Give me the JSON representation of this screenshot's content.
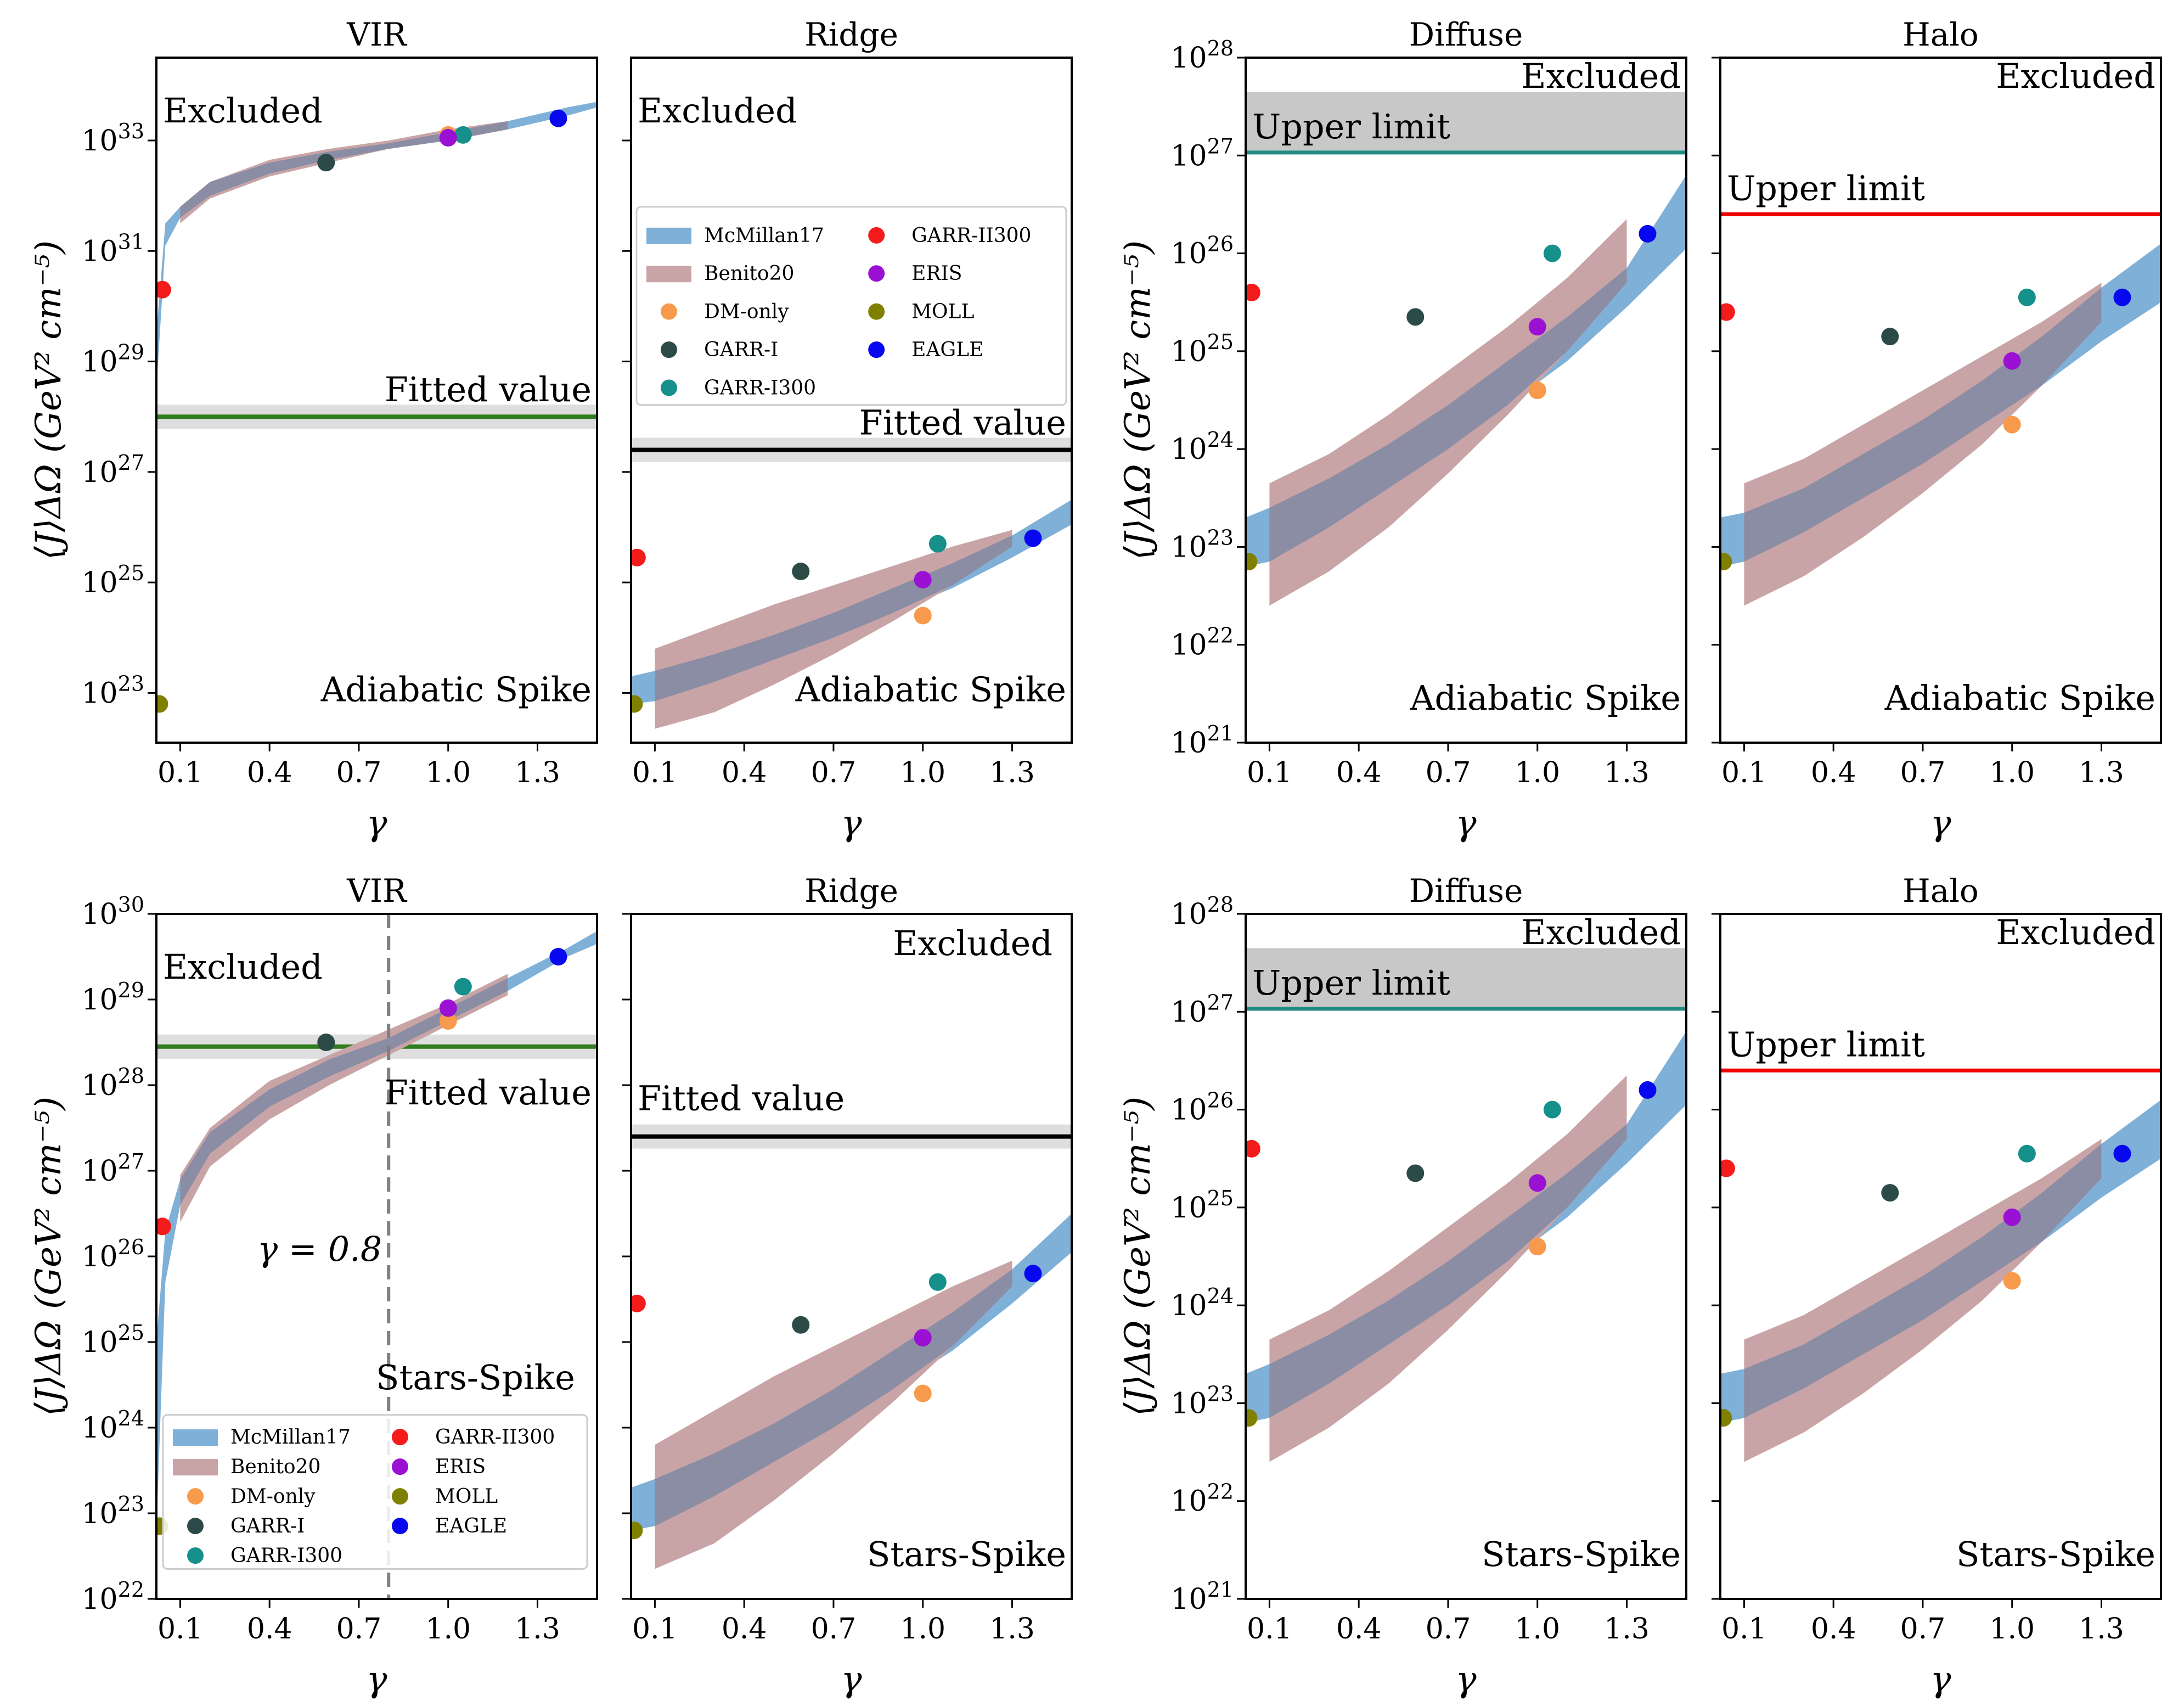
{
  "colors": {
    "mcmillan": "#7fb1d8",
    "benito": "#c9a4a6",
    "overlap": "#8b8da4",
    "fitted_vir": "#2f7d1f",
    "fitted_black": "#000000",
    "upper_teal": "#1f8b82",
    "upper_red": "#f00000",
    "excluded_gray": "#c8c8c8",
    "marker_colors": {
      "DM-only": "#f79a4b",
      "GARR-I": "#2c4a48",
      "GARR-I300": "#16908a",
      "GARR-II300": "#f41b1b",
      "ERIS": "#9b11d4",
      "MOLL": "#808000",
      "EAGLE": "#0808f0"
    }
  },
  "legend_entries": {
    "bands": [
      "McMillan17",
      "Benito20"
    ],
    "markers": [
      "DM-only",
      "GARR-I",
      "GARR-I300",
      "GARR-II300",
      "ERIS",
      "MOLL",
      "EAGLE"
    ]
  },
  "labels": {
    "excluded": "Excluded",
    "fitted": "Fitted value",
    "upper": "Upper limit",
    "adiabatic": "Adiabatic Spike",
    "stars": "Stars-Spike",
    "gamma_line": "γ = 0.8"
  },
  "chart_data": [
    {
      "id": "adiabatic-vir",
      "type": "scatter",
      "title": "VIR",
      "xlabel": "γ",
      "ylabel": "⟨J⟩ΔΩ (GeV² cm⁻⁵)",
      "xlim": [
        0.02,
        1.5
      ],
      "ylim_log10": [
        22.1,
        34.5
      ],
      "y_ticks_log10": [
        23,
        25,
        27,
        29,
        31,
        33
      ],
      "x_ticks": [
        0.1,
        0.4,
        0.7,
        1.0,
        1.3
      ],
      "model_label": "Adiabatic Spike",
      "line_type": "fitted",
      "line_log10": 28.0,
      "points": {
        "DM-only": [
          1.0,
          33.1
        ],
        "GARR-I": [
          0.59,
          32.6
        ],
        "GARR-I300": [
          1.05,
          33.1
        ],
        "GARR-II300": [
          0.04,
          30.3
        ],
        "ERIS": [
          1.0,
          33.05
        ],
        "MOLL": [
          0.03,
          22.8
        ],
        "EAGLE": [
          1.37,
          33.4
        ]
      },
      "bands": {
        "mcmillan": {
          "x": [
            0.02,
            0.05,
            0.1,
            0.2,
            0.4,
            0.6,
            0.8,
            1.0,
            1.2,
            1.4,
            1.5
          ],
          "lo": [
            28.5,
            31.1,
            31.6,
            32.0,
            32.4,
            32.65,
            32.85,
            33.0,
            33.2,
            33.45,
            33.6
          ],
          "hi": [
            29.5,
            31.5,
            31.8,
            32.25,
            32.6,
            32.8,
            32.95,
            33.15,
            33.35,
            33.6,
            33.7
          ]
        },
        "benito": {
          "x": [
            0.1,
            0.2,
            0.4,
            0.6,
            0.8,
            1.0,
            1.2
          ],
          "lo": [
            31.5,
            31.95,
            32.35,
            32.6,
            32.85,
            33.0,
            33.2
          ],
          "hi": [
            31.8,
            32.25,
            32.65,
            32.85,
            33.0,
            33.2,
            33.35
          ]
        }
      }
    },
    {
      "id": "adiabatic-ridge",
      "type": "scatter",
      "title": "Ridge",
      "xlabel": "γ",
      "ylabel": "",
      "xlim": [
        0.02,
        1.5
      ],
      "ylim_log10": [
        22.1,
        34.5
      ],
      "y_ticks_log10": [
        23,
        25,
        27,
        29,
        31,
        33
      ],
      "x_ticks": [
        0.1,
        0.4,
        0.7,
        1.0,
        1.3
      ],
      "model_label": "Adiabatic Spike",
      "line_type": "fitted",
      "line_log10": 27.4,
      "points": {
        "DM-only": [
          1.0,
          24.4
        ],
        "GARR-I": [
          0.59,
          25.2
        ],
        "GARR-I300": [
          1.05,
          25.7
        ],
        "GARR-II300": [
          0.04,
          25.45
        ],
        "ERIS": [
          1.0,
          25.05
        ],
        "MOLL": [
          0.03,
          22.8
        ],
        "EAGLE": [
          1.37,
          25.8
        ]
      },
      "bands": {
        "mcmillan": {
          "x": [
            0.02,
            0.1,
            0.3,
            0.5,
            0.7,
            0.9,
            1.1,
            1.3,
            1.5
          ],
          "lo": [
            22.8,
            22.85,
            23.2,
            23.6,
            24.0,
            24.45,
            24.9,
            25.45,
            26.05
          ],
          "hi": [
            23.3,
            23.4,
            23.7,
            24.05,
            24.45,
            24.9,
            25.35,
            25.85,
            26.5
          ]
        },
        "benito": {
          "x": [
            0.1,
            0.3,
            0.5,
            0.7,
            0.9,
            1.1,
            1.3
          ],
          "lo": [
            22.35,
            22.65,
            23.15,
            23.7,
            24.3,
            24.95,
            25.65
          ],
          "hi": [
            23.8,
            24.2,
            24.6,
            24.95,
            25.3,
            25.65,
            25.95
          ]
        }
      }
    },
    {
      "id": "adiabatic-diffuse",
      "type": "scatter",
      "title": "Diffuse",
      "xlabel": "γ",
      "ylabel": "⟨J⟩ΔΩ (GeV² cm⁻⁵)",
      "xlim": [
        0.02,
        1.5
      ],
      "ylim_log10": [
        21,
        28
      ],
      "y_ticks_log10": [
        21,
        22,
        23,
        24,
        25,
        26,
        27,
        28
      ],
      "x_ticks": [
        0.1,
        0.4,
        0.7,
        1.0,
        1.3
      ],
      "model_label": "Adiabatic Spike",
      "line_type": "upper_teal",
      "line_log10": 27.03,
      "excluded_top_log10": 27.65,
      "points": {
        "DM-only": [
          1.0,
          24.6
        ],
        "GARR-I": [
          0.59,
          25.35
        ],
        "GARR-I300": [
          1.05,
          26.0
        ],
        "GARR-II300": [
          0.04,
          25.6
        ],
        "ERIS": [
          1.0,
          25.25
        ],
        "MOLL": [
          0.03,
          22.85
        ],
        "EAGLE": [
          1.37,
          26.2
        ]
      },
      "bands": {
        "mcmillan": {
          "x": [
            0.02,
            0.1,
            0.3,
            0.5,
            0.7,
            0.9,
            1.1,
            1.3,
            1.5
          ],
          "lo": [
            22.8,
            22.85,
            23.2,
            23.6,
            24.0,
            24.45,
            24.9,
            25.45,
            26.05
          ],
          "hi": [
            23.3,
            23.4,
            23.7,
            24.05,
            24.45,
            24.9,
            25.35,
            25.85,
            26.8
          ]
        },
        "benito": {
          "x": [
            0.1,
            0.3,
            0.5,
            0.7,
            0.9,
            1.1,
            1.3
          ],
          "lo": [
            22.4,
            22.75,
            23.2,
            23.75,
            24.35,
            25.0,
            25.7
          ],
          "hi": [
            23.65,
            23.95,
            24.35,
            24.8,
            25.25,
            25.75,
            26.35
          ]
        }
      }
    },
    {
      "id": "adiabatic-halo",
      "type": "scatter",
      "title": "Halo",
      "xlabel": "γ",
      "ylabel": "",
      "xlim": [
        0.02,
        1.5
      ],
      "ylim_log10": [
        21,
        28
      ],
      "y_ticks_log10": [
        21,
        22,
        23,
        24,
        25,
        26,
        27,
        28
      ],
      "x_ticks": [
        0.1,
        0.4,
        0.7,
        1.0,
        1.3
      ],
      "model_label": "Adiabatic Spike",
      "line_type": "upper_red",
      "line_log10": 26.4,
      "points": {
        "DM-only": [
          1.0,
          24.25
        ],
        "GARR-I": [
          0.59,
          25.15
        ],
        "GARR-I300": [
          1.05,
          25.55
        ],
        "GARR-II300": [
          0.04,
          25.4
        ],
        "ERIS": [
          1.0,
          24.9
        ],
        "MOLL": [
          0.03,
          22.85
        ],
        "EAGLE": [
          1.37,
          25.55
        ]
      },
      "bands": {
        "mcmillan": {
          "x": [
            0.02,
            0.1,
            0.3,
            0.5,
            0.7,
            0.9,
            1.1,
            1.3,
            1.5
          ],
          "lo": [
            22.8,
            22.85,
            23.15,
            23.5,
            23.85,
            24.25,
            24.65,
            25.1,
            25.5
          ],
          "hi": [
            23.3,
            23.35,
            23.6,
            23.95,
            24.3,
            24.7,
            25.15,
            25.65,
            26.1
          ]
        },
        "benito": {
          "x": [
            0.1,
            0.3,
            0.5,
            0.7,
            0.9,
            1.1,
            1.3
          ],
          "lo": [
            22.4,
            22.7,
            23.1,
            23.55,
            24.05,
            24.65,
            25.3
          ],
          "hi": [
            23.65,
            23.9,
            24.25,
            24.6,
            24.95,
            25.3,
            25.7
          ]
        }
      }
    },
    {
      "id": "stars-vir",
      "type": "scatter",
      "title": "VIR",
      "xlabel": "γ",
      "ylabel": "⟨J⟩ΔΩ (GeV² cm⁻⁵)",
      "xlim": [
        0.02,
        1.5
      ],
      "ylim_log10": [
        22,
        30
      ],
      "y_ticks_log10": [
        22,
        23,
        24,
        25,
        26,
        27,
        28,
        29,
        30
      ],
      "x_ticks": [
        0.1,
        0.4,
        0.7,
        1.0,
        1.3
      ],
      "model_label": "Stars-Spike",
      "line_type": "fitted",
      "line_log10": 28.45,
      "vline_x": 0.8,
      "points": {
        "DM-only": [
          1.0,
          28.75
        ],
        "GARR-I": [
          0.59,
          28.5
        ],
        "GARR-I300": [
          1.05,
          29.15
        ],
        "GARR-II300": [
          0.04,
          26.35
        ],
        "ERIS": [
          1.0,
          28.9
        ],
        "MOLL": [
          0.03,
          22.85
        ],
        "EAGLE": [
          1.37,
          29.5
        ]
      },
      "bands": {
        "mcmillan": {
          "x": [
            0.02,
            0.05,
            0.1,
            0.2,
            0.4,
            0.6,
            0.8,
            1.0,
            1.2,
            1.4,
            1.5
          ],
          "lo": [
            22.8,
            25.7,
            26.6,
            27.2,
            27.75,
            28.1,
            28.4,
            28.75,
            29.1,
            29.5,
            29.65
          ],
          "hi": [
            25.0,
            26.3,
            26.9,
            27.45,
            27.95,
            28.3,
            28.55,
            28.9,
            29.25,
            29.6,
            29.8
          ]
        },
        "benito": {
          "x": [
            0.1,
            0.2,
            0.4,
            0.6,
            0.8,
            1.0,
            1.2
          ],
          "lo": [
            26.4,
            27.05,
            27.6,
            28.0,
            28.35,
            28.7,
            29.05
          ],
          "hi": [
            26.95,
            27.5,
            28.05,
            28.35,
            28.65,
            28.95,
            29.3
          ]
        }
      }
    },
    {
      "id": "stars-ridge",
      "type": "scatter",
      "title": "Ridge",
      "xlabel": "γ",
      "ylabel": "",
      "xlim": [
        0.02,
        1.5
      ],
      "ylim_log10": [
        22,
        30
      ],
      "y_ticks_log10": [
        22,
        23,
        24,
        25,
        26,
        27,
        28,
        29,
        30
      ],
      "x_ticks": [
        0.1,
        0.4,
        0.7,
        1.0,
        1.3
      ],
      "model_label": "Stars-Spike",
      "line_type": "fitted",
      "line_log10": 27.4,
      "points": {
        "DM-only": [
          1.0,
          24.4
        ],
        "GARR-I": [
          0.59,
          25.2
        ],
        "GARR-I300": [
          1.05,
          25.7
        ],
        "GARR-II300": [
          0.04,
          25.45
        ],
        "ERIS": [
          1.0,
          25.05
        ],
        "MOLL": [
          0.03,
          22.8
        ],
        "EAGLE": [
          1.37,
          25.8
        ]
      },
      "bands": {
        "mcmillan": {
          "x": [
            0.02,
            0.1,
            0.3,
            0.5,
            0.7,
            0.9,
            1.1,
            1.3,
            1.5
          ],
          "lo": [
            22.8,
            22.85,
            23.2,
            23.6,
            24.0,
            24.45,
            24.9,
            25.45,
            26.05
          ],
          "hi": [
            23.3,
            23.4,
            23.7,
            24.05,
            24.45,
            24.9,
            25.35,
            25.85,
            26.5
          ]
        },
        "benito": {
          "x": [
            0.1,
            0.3,
            0.5,
            0.7,
            0.9,
            1.1,
            1.3
          ],
          "lo": [
            22.35,
            22.65,
            23.15,
            23.7,
            24.3,
            24.95,
            25.65
          ],
          "hi": [
            23.8,
            24.2,
            24.6,
            24.95,
            25.3,
            25.65,
            25.95
          ]
        }
      }
    },
    {
      "id": "stars-diffuse",
      "type": "scatter",
      "title": "Diffuse",
      "xlabel": "γ",
      "ylabel": "⟨J⟩ΔΩ (GeV² cm⁻⁵)",
      "xlim": [
        0.02,
        1.5
      ],
      "ylim_log10": [
        21,
        28
      ],
      "y_ticks_log10": [
        21,
        22,
        23,
        24,
        25,
        26,
        27,
        28
      ],
      "x_ticks": [
        0.1,
        0.4,
        0.7,
        1.0,
        1.3
      ],
      "model_label": "Stars-Spike",
      "line_type": "upper_teal",
      "line_log10": 27.03,
      "excluded_top_log10": 27.65,
      "points": {
        "DM-only": [
          1.0,
          24.6
        ],
        "GARR-I": [
          0.59,
          25.35
        ],
        "GARR-I300": [
          1.05,
          26.0
        ],
        "GARR-II300": [
          0.04,
          25.6
        ],
        "ERIS": [
          1.0,
          25.25
        ],
        "MOLL": [
          0.03,
          22.85
        ],
        "EAGLE": [
          1.37,
          26.2
        ]
      },
      "bands": {
        "mcmillan": {
          "x": [
            0.02,
            0.1,
            0.3,
            0.5,
            0.7,
            0.9,
            1.1,
            1.3,
            1.5
          ],
          "lo": [
            22.8,
            22.85,
            23.2,
            23.6,
            24.0,
            24.45,
            24.9,
            25.45,
            26.05
          ],
          "hi": [
            23.3,
            23.4,
            23.7,
            24.05,
            24.45,
            24.9,
            25.35,
            25.85,
            26.8
          ]
        },
        "benito": {
          "x": [
            0.1,
            0.3,
            0.5,
            0.7,
            0.9,
            1.1,
            1.3
          ],
          "lo": [
            22.4,
            22.75,
            23.2,
            23.75,
            24.35,
            25.0,
            25.7
          ],
          "hi": [
            23.65,
            23.95,
            24.35,
            24.8,
            25.25,
            25.75,
            26.35
          ]
        }
      }
    },
    {
      "id": "stars-halo",
      "type": "scatter",
      "title": "Halo",
      "xlabel": "γ",
      "ylabel": "",
      "xlim": [
        0.02,
        1.5
      ],
      "ylim_log10": [
        21,
        28
      ],
      "y_ticks_log10": [
        21,
        22,
        23,
        24,
        25,
        26,
        27,
        28
      ],
      "x_ticks": [
        0.1,
        0.4,
        0.7,
        1.0,
        1.3
      ],
      "model_label": "Stars-Spike",
      "line_type": "upper_red",
      "line_log10": 26.4,
      "points": {
        "DM-only": [
          1.0,
          24.25
        ],
        "GARR-I": [
          0.59,
          25.15
        ],
        "GARR-I300": [
          1.05,
          25.55
        ],
        "GARR-II300": [
          0.04,
          25.4
        ],
        "ERIS": [
          1.0,
          24.9
        ],
        "MOLL": [
          0.03,
          22.85
        ],
        "EAGLE": [
          1.37,
          25.55
        ]
      },
      "bands": {
        "mcmillan": {
          "x": [
            0.02,
            0.1,
            0.3,
            0.5,
            0.7,
            0.9,
            1.1,
            1.3,
            1.5
          ],
          "lo": [
            22.8,
            22.85,
            23.15,
            23.5,
            23.85,
            24.25,
            24.65,
            25.1,
            25.5
          ],
          "hi": [
            23.3,
            23.35,
            23.6,
            23.95,
            24.3,
            24.7,
            25.15,
            25.65,
            26.1
          ]
        },
        "benito": {
          "x": [
            0.1,
            0.3,
            0.5,
            0.7,
            0.9,
            1.1,
            1.3
          ],
          "lo": [
            22.4,
            22.7,
            23.1,
            23.55,
            24.05,
            24.65,
            25.3
          ],
          "hi": [
            23.65,
            23.9,
            24.25,
            24.6,
            24.95,
            25.3,
            25.7
          ]
        }
      }
    }
  ]
}
